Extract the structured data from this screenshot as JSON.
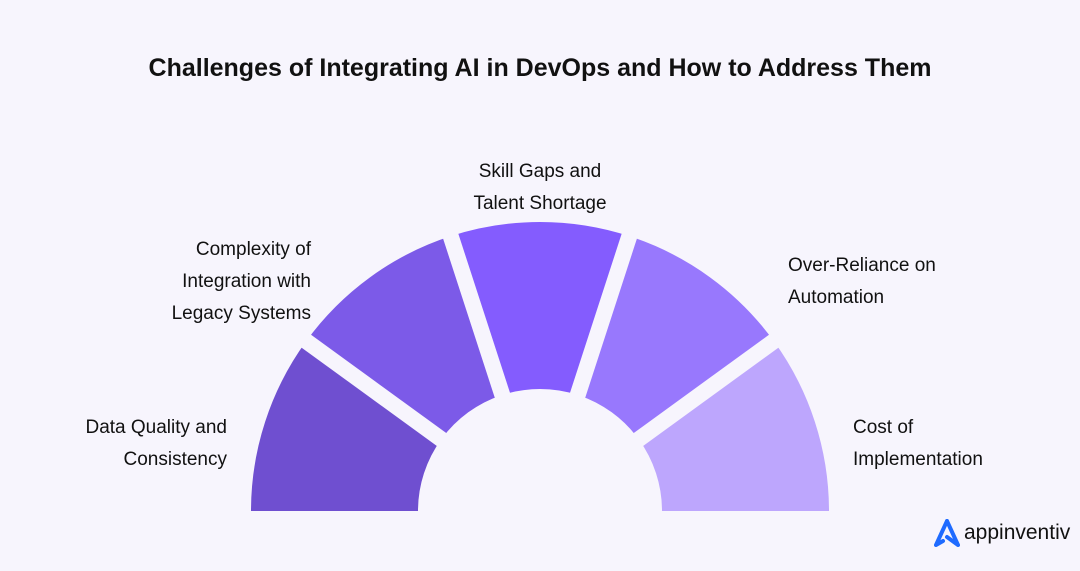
{
  "title": "Challenges of Integrating AI in DevOps and How to Address Them",
  "segments": [
    {
      "label": "Data Quality and\nConsistency",
      "color": "#6f4fd0"
    },
    {
      "label": "Complexity of\nIntegration with\nLegacy Systems",
      "color": "#7c5ae8"
    },
    {
      "label": "Skill Gaps and\nTalent Shortage",
      "color": "#845cfe"
    },
    {
      "label": "Over-Reliance on\nAutomation",
      "color": "#9878fd"
    },
    {
      "label": "Cost of\nImplementation",
      "color": "#bda6fd"
    }
  ],
  "logo": {
    "text": "appinventiv",
    "color": "#1f6bff"
  }
}
